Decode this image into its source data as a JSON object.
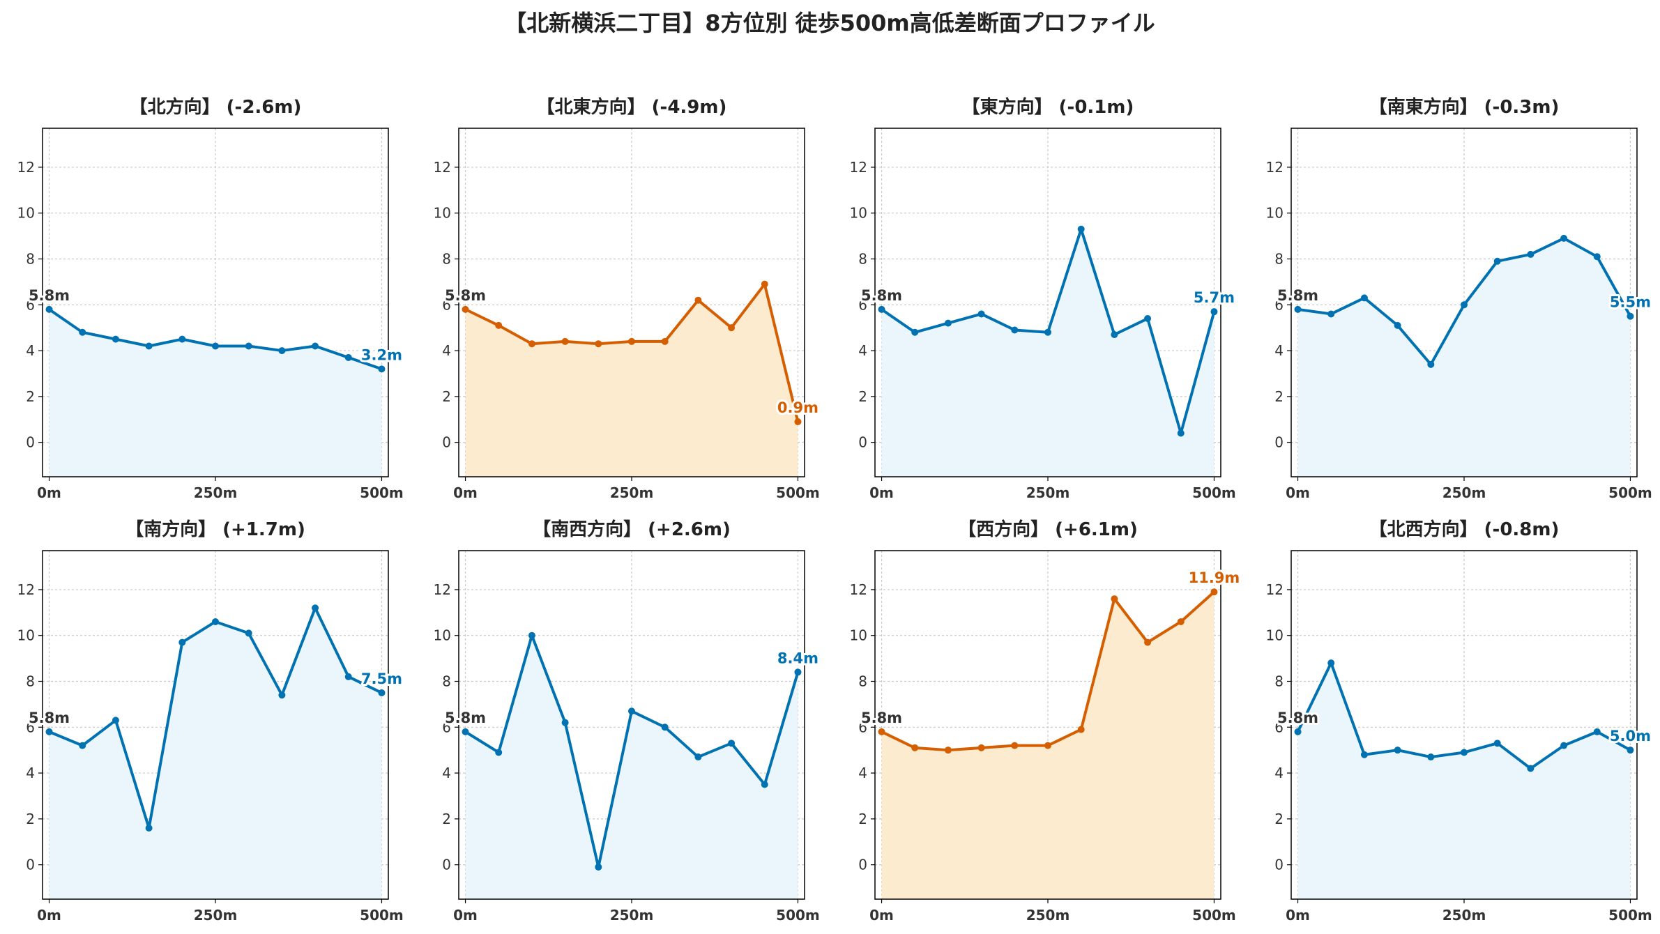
{
  "suptitle": "【北新横浜二丁目】8方位別 徒歩500m高低差断面プロファイル",
  "chart_data": [
    {
      "type": "line",
      "title": "【北方向】 (-2.6m)",
      "x": [
        0,
        50,
        100,
        150,
        200,
        250,
        300,
        350,
        400,
        450,
        500
      ],
      "values": [
        5.8,
        4.8,
        4.5,
        4.2,
        4.5,
        4.2,
        4.2,
        4.0,
        4.2,
        3.7,
        3.2
      ],
      "start_label": "5.8m",
      "end_label": "3.2m",
      "color": "#0072B2",
      "fill": "#EAF6FC",
      "xlim": [
        -10,
        510
      ],
      "ylim": [
        -1.5,
        13.7
      ]
    },
    {
      "type": "line",
      "title": "【北東方向】 (-4.9m)",
      "x": [
        0,
        50,
        100,
        150,
        200,
        250,
        300,
        350,
        400,
        450,
        500
      ],
      "values": [
        5.8,
        5.1,
        4.3,
        4.4,
        4.3,
        4.4,
        4.4,
        6.2,
        5.0,
        6.9,
        0.9
      ],
      "start_label": "5.8m",
      "end_label": "0.9m",
      "color": "#D55E00",
      "fill": "#FDEBD0",
      "xlim": [
        -10,
        510
      ],
      "ylim": [
        -1.5,
        13.7
      ]
    },
    {
      "type": "line",
      "title": "【東方向】 (-0.1m)",
      "x": [
        0,
        50,
        100,
        150,
        200,
        250,
        300,
        350,
        400,
        450,
        500
      ],
      "values": [
        5.8,
        4.8,
        5.2,
        5.6,
        4.9,
        4.8,
        9.3,
        4.7,
        5.4,
        0.4,
        5.7
      ],
      "start_label": "5.8m",
      "end_label": "5.7m",
      "color": "#0072B2",
      "fill": "#EAF6FC",
      "xlim": [
        -10,
        510
      ],
      "ylim": [
        -1.5,
        13.7
      ]
    },
    {
      "type": "line",
      "title": "【南東方向】 (-0.3m)",
      "x": [
        0,
        50,
        100,
        150,
        200,
        250,
        300,
        350,
        400,
        450,
        500
      ],
      "values": [
        5.8,
        5.6,
        6.3,
        5.1,
        3.4,
        6.0,
        7.9,
        8.2,
        8.9,
        8.1,
        5.5
      ],
      "start_label": "5.8m",
      "end_label": "5.5m",
      "color": "#0072B2",
      "fill": "#EAF6FC",
      "xlim": [
        -10,
        510
      ],
      "ylim": [
        -1.5,
        13.7
      ]
    },
    {
      "type": "line",
      "title": "【南方向】 (+1.7m)",
      "x": [
        0,
        50,
        100,
        150,
        200,
        250,
        300,
        350,
        400,
        450,
        500
      ],
      "values": [
        5.8,
        5.2,
        6.3,
        1.6,
        9.7,
        10.6,
        10.1,
        7.4,
        11.2,
        8.2,
        7.5
      ],
      "start_label": "5.8m",
      "end_label": "7.5m",
      "color": "#0072B2",
      "fill": "#EAF6FC",
      "xlim": [
        -10,
        510
      ],
      "ylim": [
        -1.5,
        13.7
      ]
    },
    {
      "type": "line",
      "title": "【南西方向】 (+2.6m)",
      "x": [
        0,
        50,
        100,
        150,
        200,
        250,
        300,
        350,
        400,
        450,
        500
      ],
      "values": [
        5.8,
        4.9,
        10.0,
        6.2,
        -0.1,
        6.7,
        6.0,
        4.7,
        5.3,
        3.5,
        8.4
      ],
      "start_label": "5.8m",
      "end_label": "8.4m",
      "color": "#0072B2",
      "fill": "#EAF6FC",
      "xlim": [
        -10,
        510
      ],
      "ylim": [
        -1.5,
        13.7
      ]
    },
    {
      "type": "line",
      "title": "【西方向】 (+6.1m)",
      "x": [
        0,
        50,
        100,
        150,
        200,
        250,
        300,
        350,
        400,
        450,
        500
      ],
      "values": [
        5.8,
        5.1,
        5.0,
        5.1,
        5.2,
        5.2,
        5.9,
        11.6,
        9.7,
        10.6,
        11.9
      ],
      "start_label": "5.8m",
      "end_label": "11.9m",
      "color": "#D55E00",
      "fill": "#FDEBD0",
      "xlim": [
        -10,
        510
      ],
      "ylim": [
        -1.5,
        13.7
      ]
    },
    {
      "type": "line",
      "title": "【北西方向】 (-0.8m)",
      "x": [
        0,
        50,
        100,
        150,
        200,
        250,
        300,
        350,
        400,
        450,
        500
      ],
      "values": [
        5.8,
        8.8,
        4.8,
        5.0,
        4.7,
        4.9,
        5.3,
        4.2,
        5.2,
        5.8,
        5.0
      ],
      "start_label": "5.8m",
      "end_label": "5.0m",
      "color": "#0072B2",
      "fill": "#EAF6FC",
      "xlim": [
        -10,
        510
      ],
      "ylim": [
        -1.5,
        13.7
      ]
    }
  ],
  "axes": {
    "yticks": [
      0,
      2,
      4,
      6,
      8,
      10,
      12
    ],
    "ytick_labels": [
      "0",
      "2",
      "4",
      "6",
      "8",
      "10",
      "12"
    ],
    "xticks": [
      0,
      250,
      500
    ],
    "xtick_labels": [
      "0m",
      "250m",
      "500m"
    ],
    "grid": true,
    "start_label_color": "#333333"
  }
}
